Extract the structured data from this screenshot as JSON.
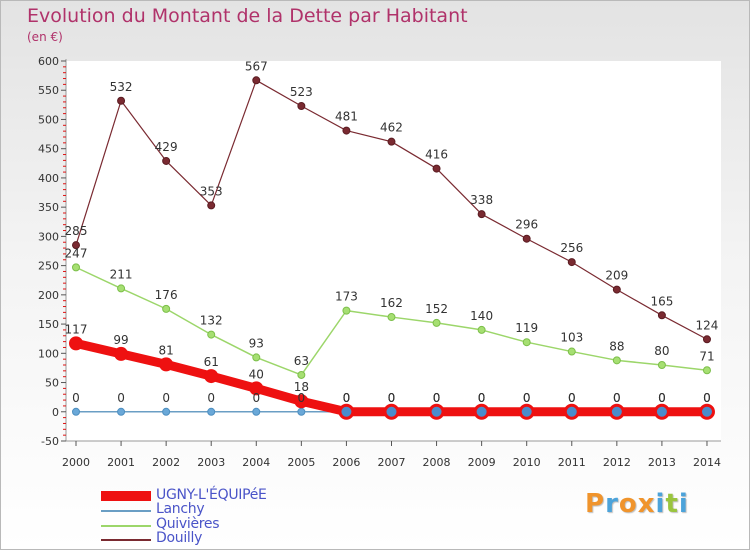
{
  "title": "Evolution du Montant de la Dette par Habitant",
  "subtitle": "(en €)",
  "logo": {
    "letters": [
      "P",
      "r",
      "o",
      "x",
      "i",
      "t",
      "i"
    ],
    "colors": [
      "#f0942c",
      "#4ca3da",
      "#f0942c",
      "#f0942c",
      "#4ca3da",
      "#9ac53e",
      "#4ca3da"
    ]
  },
  "chart_data": {
    "type": "line",
    "x": [
      "2000",
      "2001",
      "2002",
      "2003",
      "2004",
      "2005",
      "2006",
      "2007",
      "2008",
      "2009",
      "2010",
      "2011",
      "2012",
      "2013",
      "2014"
    ],
    "ylim": [
      -50,
      600
    ],
    "yticks": [
      "600",
      "550",
      "500",
      "450",
      "400",
      "350",
      "300",
      "250",
      "200",
      "150",
      "100",
      "50",
      "0",
      "-50"
    ],
    "grid": false,
    "legend": "bottom-left",
    "series": [
      {
        "name": "UGNY-L'ÉQUIPéE",
        "color": "#ee1111",
        "values": [
          117,
          99,
          81,
          61,
          40,
          18,
          0,
          0,
          0,
          0,
          0,
          0,
          0,
          0,
          0
        ],
        "labels": [
          "117",
          "99",
          "81",
          "61",
          "40",
          "18",
          "0",
          "0",
          "0",
          "0",
          "0",
          "0",
          "0",
          "0",
          "0"
        ]
      },
      {
        "name": "Lanchy",
        "color": "#6a9ec4",
        "values": [
          0,
          0,
          0,
          0,
          0,
          0,
          0,
          0,
          0,
          0,
          0,
          0,
          0,
          0,
          0
        ],
        "labels": [
          "0",
          "0",
          "0",
          "0",
          "0",
          "0",
          "0",
          "0",
          "0",
          "0",
          "0",
          "0",
          "0",
          "0",
          "0"
        ]
      },
      {
        "name": "Quivières",
        "color": "#9cd66a",
        "values": [
          247,
          211,
          176,
          132,
          93,
          63,
          173,
          162,
          152,
          140,
          119,
          103,
          88,
          80,
          71
        ],
        "labels": [
          "247",
          "211",
          "176",
          "132",
          "93",
          "63",
          "173",
          "162",
          "152",
          "140",
          "119",
          "103",
          "88",
          "80",
          "71"
        ]
      },
      {
        "name": "Douilly",
        "color": "#7a2a31",
        "values": [
          285,
          532,
          429,
          353,
          567,
          523,
          481,
          462,
          416,
          338,
          296,
          256,
          209,
          165,
          124
        ],
        "labels": [
          "285",
          "532",
          "429",
          "353",
          "567",
          "523",
          "481",
          "462",
          "416",
          "338",
          "296",
          "256",
          "209",
          "165",
          "124"
        ]
      }
    ]
  }
}
